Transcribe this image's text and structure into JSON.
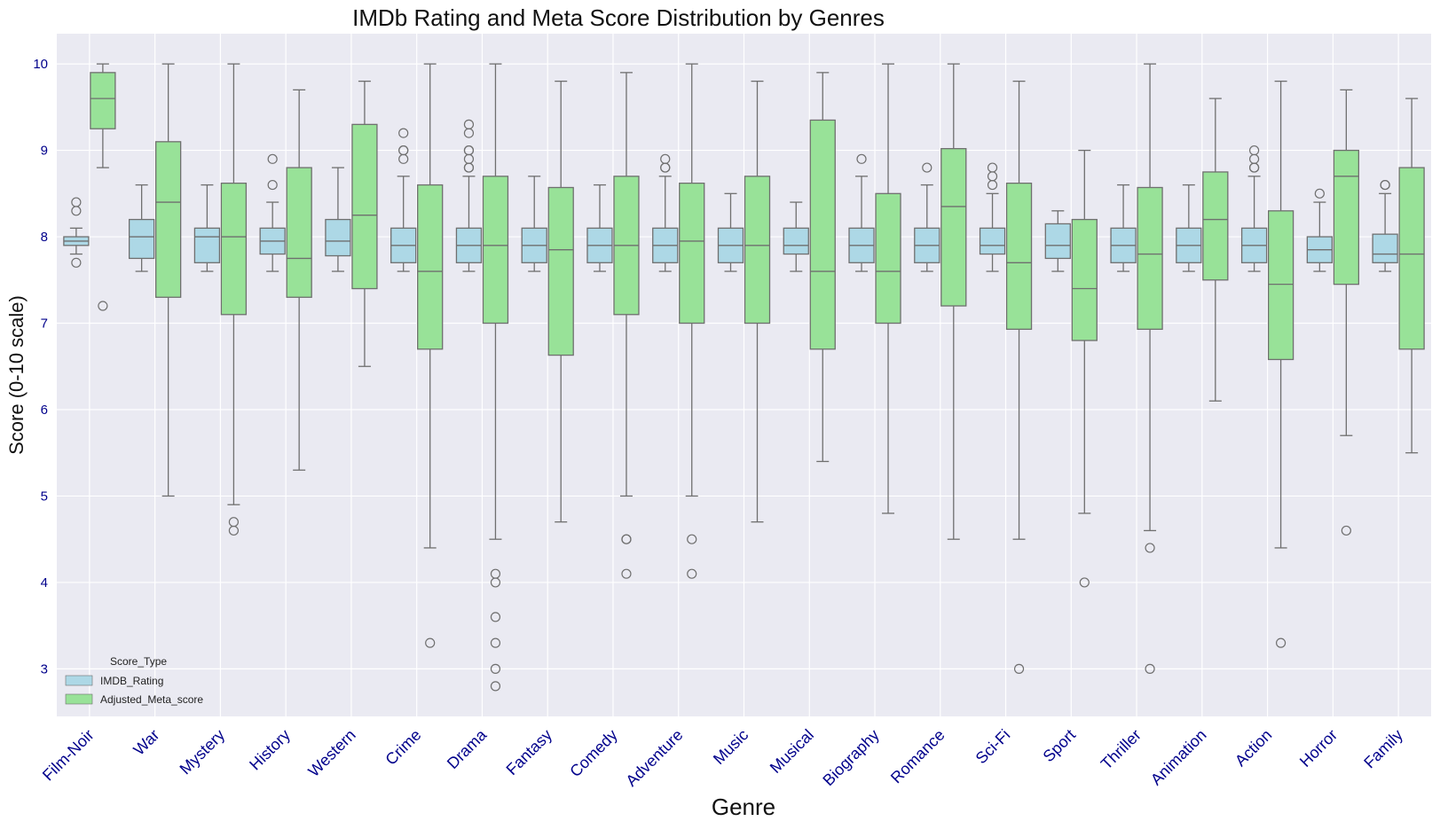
{
  "chart_data": {
    "type": "boxplot",
    "title": "IMDb Rating and Meta Score Distribution by Genres",
    "xlabel": "Genre",
    "ylabel": "Score (0-10 scale)",
    "ylim": [
      2.45,
      10.35
    ],
    "yticks": [
      3,
      4,
      5,
      6,
      7,
      8,
      9,
      10
    ],
    "grid": true,
    "legend": {
      "title": "Score_Type",
      "placement": "lower-left",
      "entries": [
        "IMDB_Rating",
        "Adjusted_Meta_score"
      ]
    },
    "colors": {
      "background": "#eaeaf2",
      "grid": "#ffffff",
      "imdb_box": "#add8e6",
      "meta_box": "#98e298",
      "line": "#6f6f6f",
      "tick_text": "#00008b"
    },
    "categories": [
      "Film-Noir",
      "War",
      "Mystery",
      "History",
      "Western",
      "Crime",
      "Drama",
      "Fantasy",
      "Comedy",
      "Adventure",
      "Music",
      "Musical",
      "Biography",
      "Romance",
      "Sci-Fi",
      "Sport",
      "Thriller",
      "Animation",
      "Action",
      "Horror",
      "Family"
    ],
    "series": [
      {
        "name": "IMDB_Rating",
        "boxes": [
          {
            "whisker_low": 7.8,
            "q1": 7.9,
            "median": 7.95,
            "q3": 8.0,
            "whisker_high": 8.1,
            "outliers": [
              8.3,
              8.4,
              7.7
            ]
          },
          {
            "whisker_low": 7.6,
            "q1": 7.75,
            "median": 8.0,
            "q3": 8.2,
            "whisker_high": 8.6,
            "outliers": []
          },
          {
            "whisker_low": 7.6,
            "q1": 7.7,
            "median": 8.0,
            "q3": 8.1,
            "whisker_high": 8.6,
            "outliers": []
          },
          {
            "whisker_low": 7.6,
            "q1": 7.8,
            "median": 7.95,
            "q3": 8.1,
            "whisker_high": 8.4,
            "outliers": [
              8.6,
              8.9
            ]
          },
          {
            "whisker_low": 7.6,
            "q1": 7.78,
            "median": 7.95,
            "q3": 8.2,
            "whisker_high": 8.8,
            "outliers": []
          },
          {
            "whisker_low": 7.6,
            "q1": 7.7,
            "median": 7.9,
            "q3": 8.1,
            "whisker_high": 8.7,
            "outliers": [
              8.9,
              9.0,
              9.0,
              9.2
            ]
          },
          {
            "whisker_low": 7.6,
            "q1": 7.7,
            "median": 7.9,
            "q3": 8.1,
            "whisker_high": 8.7,
            "outliers": [
              8.8,
              8.8,
              8.9,
              9.0,
              9.0,
              9.2,
              9.3
            ]
          },
          {
            "whisker_low": 7.6,
            "q1": 7.7,
            "median": 7.9,
            "q3": 8.1,
            "whisker_high": 8.7,
            "outliers": []
          },
          {
            "whisker_low": 7.6,
            "q1": 7.7,
            "median": 7.9,
            "q3": 8.1,
            "whisker_high": 8.6,
            "outliers": []
          },
          {
            "whisker_low": 7.6,
            "q1": 7.7,
            "median": 7.9,
            "q3": 8.1,
            "whisker_high": 8.7,
            "outliers": [
              8.8,
              8.8,
              8.9
            ]
          },
          {
            "whisker_low": 7.6,
            "q1": 7.7,
            "median": 7.9,
            "q3": 8.1,
            "whisker_high": 8.5,
            "outliers": []
          },
          {
            "whisker_low": 7.6,
            "q1": 7.8,
            "median": 7.9,
            "q3": 8.1,
            "whisker_high": 8.4,
            "outliers": []
          },
          {
            "whisker_low": 7.6,
            "q1": 7.7,
            "median": 7.9,
            "q3": 8.1,
            "whisker_high": 8.7,
            "outliers": [
              8.9
            ]
          },
          {
            "whisker_low": 7.6,
            "q1": 7.7,
            "median": 7.9,
            "q3": 8.1,
            "whisker_high": 8.6,
            "outliers": [
              8.8
            ]
          },
          {
            "whisker_low": 7.6,
            "q1": 7.8,
            "median": 7.9,
            "q3": 8.1,
            "whisker_high": 8.5,
            "outliers": [
              8.6,
              8.7,
              8.8
            ]
          },
          {
            "whisker_low": 7.6,
            "q1": 7.75,
            "median": 7.9,
            "q3": 8.15,
            "whisker_high": 8.3,
            "outliers": []
          },
          {
            "whisker_low": 7.6,
            "q1": 7.7,
            "median": 7.9,
            "q3": 8.1,
            "whisker_high": 8.6,
            "outliers": []
          },
          {
            "whisker_low": 7.6,
            "q1": 7.7,
            "median": 7.9,
            "q3": 8.1,
            "whisker_high": 8.6,
            "outliers": []
          },
          {
            "whisker_low": 7.6,
            "q1": 7.7,
            "median": 7.9,
            "q3": 8.1,
            "whisker_high": 8.7,
            "outliers": [
              8.8,
              8.8,
              8.9,
              9.0
            ]
          },
          {
            "whisker_low": 7.6,
            "q1": 7.7,
            "median": 7.85,
            "q3": 8.0,
            "whisker_high": 8.4,
            "outliers": [
              8.5
            ]
          },
          {
            "whisker_low": 7.6,
            "q1": 7.7,
            "median": 7.8,
            "q3": 8.03,
            "whisker_high": 8.5,
            "outliers": [
              8.6,
              8.6
            ]
          }
        ]
      },
      {
        "name": "Adjusted_Meta_score",
        "boxes": [
          {
            "whisker_low": 8.8,
            "q1": 9.25,
            "median": 9.6,
            "q3": 9.9,
            "whisker_high": 10.0,
            "outliers": [
              7.2
            ]
          },
          {
            "whisker_low": 5.0,
            "q1": 7.3,
            "median": 8.4,
            "q3": 9.1,
            "whisker_high": 10.0,
            "outliers": []
          },
          {
            "whisker_low": 4.9,
            "q1": 7.1,
            "median": 8.0,
            "q3": 8.62,
            "whisker_high": 10.0,
            "outliers": [
              4.7,
              4.6
            ]
          },
          {
            "whisker_low": 5.3,
            "q1": 7.3,
            "median": 7.75,
            "q3": 8.8,
            "whisker_high": 9.7,
            "outliers": []
          },
          {
            "whisker_low": 6.5,
            "q1": 7.4,
            "median": 8.25,
            "q3": 9.3,
            "whisker_high": 9.8,
            "outliers": []
          },
          {
            "whisker_low": 4.4,
            "q1": 6.7,
            "median": 7.6,
            "q3": 8.6,
            "whisker_high": 10.0,
            "outliers": [
              3.3
            ]
          },
          {
            "whisker_low": 4.5,
            "q1": 7.0,
            "median": 7.9,
            "q3": 8.7,
            "whisker_high": 10.0,
            "outliers": [
              4.1,
              4.0,
              3.6,
              3.3,
              3.0,
              2.8
            ]
          },
          {
            "whisker_low": 4.7,
            "q1": 6.63,
            "median": 7.85,
            "q3": 8.57,
            "whisker_high": 9.8,
            "outliers": []
          },
          {
            "whisker_low": 5.0,
            "q1": 7.1,
            "median": 7.9,
            "q3": 8.7,
            "whisker_high": 9.9,
            "outliers": [
              4.5,
              4.5,
              4.1
            ]
          },
          {
            "whisker_low": 5.0,
            "q1": 7.0,
            "median": 7.95,
            "q3": 8.62,
            "whisker_high": 10.0,
            "outliers": [
              4.5,
              4.1
            ]
          },
          {
            "whisker_low": 4.7,
            "q1": 7.0,
            "median": 7.9,
            "q3": 8.7,
            "whisker_high": 9.8,
            "outliers": []
          },
          {
            "whisker_low": 5.4,
            "q1": 6.7,
            "median": 7.6,
            "q3": 9.35,
            "whisker_high": 9.9,
            "outliers": []
          },
          {
            "whisker_low": 4.8,
            "q1": 7.0,
            "median": 7.6,
            "q3": 8.5,
            "whisker_high": 10.0,
            "outliers": []
          },
          {
            "whisker_low": 4.5,
            "q1": 7.2,
            "median": 8.35,
            "q3": 9.02,
            "whisker_high": 10.0,
            "outliers": []
          },
          {
            "whisker_low": 4.5,
            "q1": 6.93,
            "median": 7.7,
            "q3": 8.62,
            "whisker_high": 9.8,
            "outliers": [
              3.0
            ]
          },
          {
            "whisker_low": 4.8,
            "q1": 6.8,
            "median": 7.4,
            "q3": 8.2,
            "whisker_high": 9.0,
            "outliers": [
              4.0
            ]
          },
          {
            "whisker_low": 4.6,
            "q1": 6.93,
            "median": 7.8,
            "q3": 8.57,
            "whisker_high": 10.0,
            "outliers": [
              4.4,
              3.0
            ]
          },
          {
            "whisker_low": 6.1,
            "q1": 7.5,
            "median": 8.2,
            "q3": 8.75,
            "whisker_high": 9.6,
            "outliers": []
          },
          {
            "whisker_low": 4.4,
            "q1": 6.58,
            "median": 7.45,
            "q3": 8.3,
            "whisker_high": 9.8,
            "outliers": [
              3.3
            ]
          },
          {
            "whisker_low": 5.7,
            "q1": 7.45,
            "median": 8.7,
            "q3": 9.0,
            "whisker_high": 9.7,
            "outliers": [
              4.6
            ]
          },
          {
            "whisker_low": 5.5,
            "q1": 6.7,
            "median": 7.8,
            "q3": 8.8,
            "whisker_high": 9.6,
            "outliers": []
          }
        ]
      }
    ]
  }
}
